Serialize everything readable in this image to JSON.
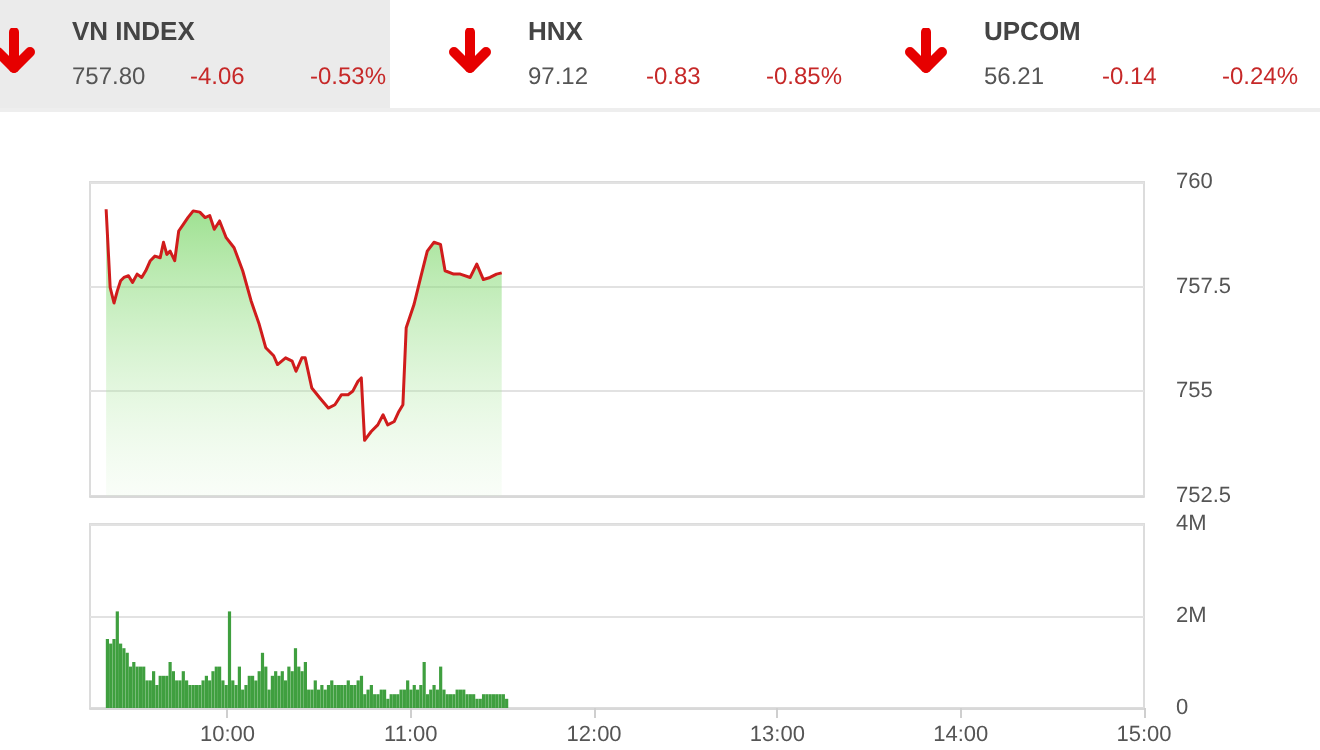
{
  "chart_data": [
    {
      "type": "other",
      "annotations": [
        "VN INDEX",
        "757.80",
        "-4.06",
        "-0.53%",
        "HNX",
        "97.12",
        "-0.83",
        "-0.85%",
        "UPCOM",
        "56.21",
        "-0.14",
        "-0.24%"
      ]
    },
    {
      "type": "area",
      "xlim": [
        9.25,
        15
      ],
      "ylim": [
        752.5,
        760
      ],
      "yticks": [
        752.5,
        757.5,
        755,
        760
      ],
      "grid": "y",
      "tick_labels": "y",
      "marker": "none",
      "series": [
        {
          "color": "#d01c1c",
          "x": [
            9.338,
            9.36,
            9.381,
            9.399,
            9.417,
            9.435,
            9.46,
            9.482,
            9.507,
            9.532,
            9.554,
            9.579,
            9.604,
            9.633,
            9.651,
            9.669,
            9.687,
            9.712,
            9.734,
            9.759,
            9.784,
            9.813,
            9.849,
            9.878,
            9.903,
            9.928,
            9.957,
            9.993,
            10.036,
            10.083,
            10.129,
            10.173,
            10.209,
            10.252,
            10.273,
            10.317,
            10.353,
            10.374,
            10.406,
            10.424,
            10.46,
            10.504,
            10.55,
            10.586,
            10.622,
            10.658,
            10.683,
            10.712,
            10.73,
            10.748,
            10.784,
            10.82,
            10.849,
            10.874,
            10.91,
            10.935,
            10.957,
            10.975,
            11.018,
            11.054,
            11.09,
            11.126,
            11.162,
            11.187,
            11.234,
            11.27,
            11.324,
            11.36,
            11.396,
            11.432,
            11.468,
            11.496
          ],
          "values": [
            759.35,
            757.48,
            757.11,
            757.4,
            757.64,
            757.72,
            757.76,
            757.6,
            757.8,
            757.72,
            757.88,
            758.12,
            758.23,
            758.19,
            758.56,
            758.27,
            758.35,
            758.12,
            758.83,
            758.99,
            759.15,
            759.31,
            759.28,
            759.15,
            759.2,
            758.87,
            759.07,
            758.67,
            758.43,
            757.88,
            757.16,
            756.6,
            756.04,
            755.85,
            755.64,
            755.8,
            755.72,
            755.48,
            755.8,
            755.8,
            755.08,
            754.84,
            754.6,
            754.68,
            754.92,
            754.92,
            755.0,
            755.24,
            755.32,
            753.83,
            754.04,
            754.2,
            754.44,
            754.2,
            754.28,
            754.52,
            754.68,
            756.52,
            757.08,
            757.72,
            758.35,
            758.56,
            758.51,
            757.88,
            757.8,
            757.8,
            757.72,
            758.04,
            757.67,
            757.72,
            757.8,
            757.83
          ]
        }
      ]
    },
    {
      "type": "bar",
      "xlim": [
        9.25,
        15
      ],
      "xticks": [
        {
          "value": 10,
          "label": "10:00"
        },
        {
          "value": 11,
          "label": "11:00"
        },
        {
          "value": 12,
          "label": "12:00"
        },
        {
          "value": 13,
          "label": "13:00"
        },
        {
          "value": 14,
          "label": "14:00"
        },
        {
          "value": 15,
          "label": "15:00"
        }
      ],
      "ylim": [
        0,
        4
      ],
      "yticks": [
        {
          "value": 0,
          "label": "0"
        },
        {
          "value": 2,
          "label": "2M"
        },
        {
          "value": 4,
          "label": "4M"
        }
      ],
      "grid": "y",
      "series": [
        {
          "color": "#3f9f3f",
          "x": [
            9.345,
            9.363,
            9.381,
            9.399,
            9.417,
            9.435,
            9.453,
            9.471,
            9.489,
            9.507,
            9.525,
            9.543,
            9.561,
            9.579,
            9.597,
            9.615,
            9.633,
            9.651,
            9.669,
            9.687,
            9.705,
            9.723,
            9.741,
            9.759,
            9.777,
            9.795,
            9.813,
            9.831,
            9.849,
            9.867,
            9.885,
            9.903,
            9.921,
            9.939,
            9.957,
            9.975,
            9.993,
            10.011,
            10.029,
            10.047,
            10.065,
            10.083,
            10.101,
            10.119,
            10.137,
            10.155,
            10.173,
            10.191,
            10.209,
            10.227,
            10.245,
            10.263,
            10.281,
            10.299,
            10.317,
            10.335,
            10.353,
            10.371,
            10.389,
            10.407,
            10.425,
            10.443,
            10.461,
            10.479,
            10.497,
            10.515,
            10.533,
            10.551,
            10.569,
            10.587,
            10.605,
            10.623,
            10.641,
            10.659,
            10.677,
            10.695,
            10.713,
            10.731,
            10.749,
            10.767,
            10.785,
            10.803,
            10.821,
            10.839,
            10.857,
            10.875,
            10.893,
            10.911,
            10.929,
            10.947,
            10.965,
            10.983,
            11.001,
            11.019,
            11.037,
            11.055,
            11.073,
            11.091,
            11.109,
            11.127,
            11.145,
            11.163,
            11.181,
            11.199,
            11.217,
            11.235,
            11.253,
            11.271,
            11.289,
            11.307,
            11.325,
            11.343,
            11.361,
            11.379,
            11.397,
            11.415,
            11.433,
            11.451,
            11.469,
            11.487,
            11.505,
            11.523
          ],
          "values": [
            1.5,
            1.4,
            1.5,
            2.1,
            1.4,
            1.3,
            1.2,
            0.9,
            1.0,
            0.9,
            0.9,
            0.9,
            0.6,
            0.6,
            0.8,
            0.5,
            0.7,
            0.7,
            0.7,
            1.0,
            0.8,
            0.6,
            0.6,
            0.8,
            0.6,
            0.5,
            0.5,
            0.5,
            0.5,
            0.6,
            0.7,
            0.6,
            0.8,
            0.9,
            0.9,
            0.6,
            0.5,
            2.1,
            0.6,
            0.5,
            0.9,
            0.4,
            0.5,
            0.7,
            0.7,
            0.6,
            0.8,
            1.2,
            0.9,
            0.4,
            0.7,
            0.8,
            0.7,
            0.8,
            0.6,
            0.9,
            0.8,
            1.3,
            0.9,
            0.8,
            1.0,
            0.4,
            0.4,
            0.6,
            0.4,
            0.5,
            0.4,
            0.5,
            0.6,
            0.5,
            0.5,
            0.5,
            0.5,
            0.6,
            0.5,
            0.5,
            0.6,
            0.7,
            0.3,
            0.4,
            0.5,
            0.3,
            0.3,
            0.4,
            0.4,
            0.2,
            0.3,
            0.3,
            0.3,
            0.4,
            0.4,
            0.6,
            0.4,
            0.5,
            0.4,
            0.5,
            1.0,
            0.3,
            0.4,
            0.5,
            0.4,
            0.9,
            0.4,
            0.3,
            0.3,
            0.3,
            0.4,
            0.4,
            0.4,
            0.3,
            0.3,
            0.3,
            0.2,
            0.2,
            0.3,
            0.3,
            0.3,
            0.3,
            0.3,
            0.3,
            0.3,
            0.2
          ]
        }
      ]
    }
  ]
}
